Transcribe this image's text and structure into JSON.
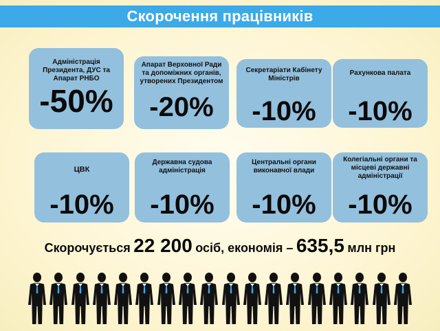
{
  "header": {
    "title": "Скорочення працівників"
  },
  "cards": [
    {
      "label": "Адміністрація Президента, ДУС та Апарат РНБО",
      "value": "-50%"
    },
    {
      "label": "Апарат Верховної Ради та допоміжних органів, утворених Президентом",
      "value": "-20%"
    },
    {
      "label": "Секретаріати Кабінету Міністрів",
      "value": "-10%"
    },
    {
      "label": "Рахункова палата",
      "value": "-10%"
    },
    {
      "label": "ЦВК",
      "value": "-10%"
    },
    {
      "label": "Державна судова адміністрація",
      "value": "-10%"
    },
    {
      "label": "Центральні органи виконавчої влади",
      "value": "-10%"
    },
    {
      "label": "Колегіальні органи та місцеві державні адміністрації",
      "value": "-10%"
    }
  ],
  "summary": {
    "prefix": "Скорочується",
    "count": "22 200",
    "middle": "осіб, економія –",
    "amount": "635,5",
    "suffix": "млн грн"
  },
  "people_icon": "person-in-suit-icon",
  "colors": {
    "header": "#3ca9e8",
    "card": "#93c0dd",
    "background": "#fdf4cf"
  }
}
